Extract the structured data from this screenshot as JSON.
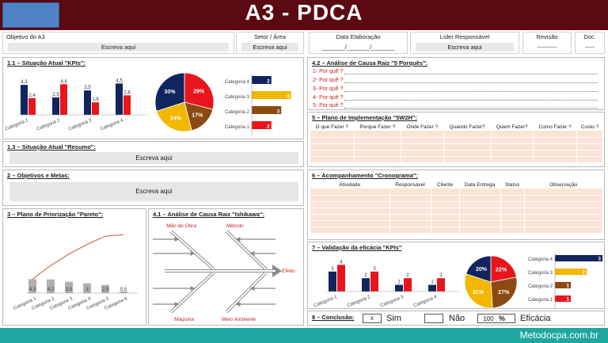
{
  "header": {
    "title": "A3 - PDCA",
    "objetivo_label": "Objetivo do A3",
    "objetivo_value": "Escreva aqui",
    "setor_label": "Setor / Área",
    "setor_value": "Escreva aqui",
    "data_label": "Data Elaboração",
    "data_value": "_______/_______/_______",
    "lider_label": "Líder Responsável",
    "lider_value": "Escreva aqui",
    "revisao_label": "Revisão",
    "revisao_value": "----------",
    "doc_label": "Doc.",
    "doc_value": "-----"
  },
  "sections": {
    "s11": "1.1 – Situação Atual \"KPIs\":",
    "s13": "1.3 – Situação Atual \"Resumo\":",
    "s13_value": "Escreva aqui",
    "s2": "2 – Objetivos e Metas:",
    "s2_value": "Escreva aqui",
    "s3": "3 – Plano de Priorização \"Pareto\":",
    "s41": "4.1 – Análise de Causa Raiz \"Ishikawa\":",
    "s42": "4.2 – Análise de Causa Raiz \"5 Porquês\":",
    "s5": "5 – Plano de Implementação \"5W2H\":",
    "s6": "6 – Acompanhamento \"Cronograma\":",
    "s7": "7 – Validação da eficácia \"KPIs\"",
    "s8": "8 – Conclusão:"
  },
  "porques": [
    "1- Por quê ?",
    "2- Por quê ?",
    "3- Por quê ?",
    "4- Por quê ?",
    "5- Por quê ?"
  ],
  "w5h2_headers": [
    "O que Fazer ?",
    "Porque Fazer ?",
    "Onde Fazer ?",
    "Quando Fazer?",
    "Quem Fazer?",
    "Como Fazer ?",
    "Custo ?"
  ],
  "cronograma_headers": [
    "Atividade",
    "Responsável",
    "Cliente",
    "Data Entrega",
    "Status",
    "Observação"
  ],
  "ishikawa": {
    "mao_de_obra": "Mão de Obra",
    "metodo": "Método",
    "maquina": "Máquina",
    "meio_ambiente": "Meio Ambiente",
    "efeito": "Efeito"
  },
  "conclusao": {
    "sim_mark": "x",
    "sim_label": "Sim",
    "nao_label": "Não",
    "pct_value": "100",
    "pct_symbol": "%",
    "eficacia_label": "Eficácia"
  },
  "footer": "Metodocpa.com.br",
  "colors": {
    "navy": "#10245e",
    "red": "#e8161c",
    "orange": "#f3b700",
    "brown": "#8b4a12",
    "header": "#5a0a10",
    "footer": "#1ea7a0"
  },
  "chart_data": [
    {
      "type": "bar",
      "id": "kpi_atual",
      "categories": [
        "Categoria 1",
        "Categoria 2",
        "Categoria 3",
        "Categoria 4"
      ],
      "series": [
        {
          "values": [
            4.3,
            2.5,
            3.5,
            4.5
          ],
          "color": "#10245e"
        },
        {
          "values": [
            2.4,
            4.4,
            1.8,
            2.8
          ],
          "color": "#e8161c"
        }
      ],
      "ylim": [
        0,
        5
      ]
    },
    {
      "type": "pie",
      "id": "pie_atual",
      "slices": [
        {
          "label": "Categoria 1",
          "value": 29,
          "text": "29%",
          "color": "#e8161c"
        },
        {
          "label": "Categoria 2",
          "value": 17,
          "text": "17%",
          "color": "#8b4a12"
        },
        {
          "label": "Categoria 3",
          "value": 24,
          "text": "24%",
          "color": "#f3b700"
        },
        {
          "label": "Categoria 4",
          "value": 30,
          "text": "30%",
          "color": "#10245e"
        }
      ]
    },
    {
      "type": "bar",
      "id": "hbar_atual",
      "orientation": "horizontal",
      "categories": [
        "Categoria 4",
        "Categoria 3",
        "Categoria 2",
        "Categoria 1"
      ],
      "values": [
        2,
        4,
        3,
        2
      ],
      "colors": [
        "#10245e",
        "#f3b700",
        "#8b4a12",
        "#e8161c"
      ],
      "xlim": [
        0,
        5
      ]
    },
    {
      "type": "bar",
      "id": "pareto",
      "categories": [
        "Categoria 1",
        "Categoria 2",
        "Categoria 3",
        "Categoria 4",
        "Categoria 5",
        "Categoria 6"
      ],
      "values": [
        4.3,
        4.2,
        3.5,
        3,
        2.5,
        0.5
      ],
      "labels": [
        "4,3",
        "4,2",
        "3,5",
        "3",
        "2,5",
        "0,5"
      ],
      "cumulative_line": true,
      "ylim": [
        0,
        20
      ]
    },
    {
      "type": "bar",
      "id": "kpi_validacao",
      "categories": [
        "Categoria 1",
        "Categoria 2",
        "Categoria 3",
        "Categoria 4"
      ],
      "series": [
        {
          "values": [
            3,
            2,
            1,
            1
          ],
          "color": "#10245e"
        },
        {
          "values": [
            4,
            3,
            2,
            2
          ],
          "color": "#e8161c"
        }
      ],
      "ylim": [
        0,
        5
      ]
    },
    {
      "type": "pie",
      "id": "pie_validacao",
      "slices": [
        {
          "label": "Categoria 1",
          "value": 22,
          "text": "22%",
          "color": "#e8161c"
        },
        {
          "label": "Categoria 2",
          "value": 27,
          "text": "27%",
          "color": "#8b4a12"
        },
        {
          "label": "Categoria 3",
          "value": 31,
          "text": "31%",
          "color": "#f3b700"
        },
        {
          "label": "Categoria 4",
          "value": 20,
          "text": "20%",
          "color": "#10245e"
        }
      ]
    },
    {
      "type": "bar",
      "id": "hbar_validacao",
      "orientation": "horizontal",
      "categories": [
        "Categoria 4",
        "Categoria 3",
        "Categoria 2",
        "Categoria 1"
      ],
      "values": [
        3,
        2,
        1,
        1
      ],
      "colors": [
        "#10245e",
        "#f3b700",
        "#8b4a12",
        "#e8161c"
      ],
      "xlim": [
        0,
        3
      ]
    }
  ]
}
